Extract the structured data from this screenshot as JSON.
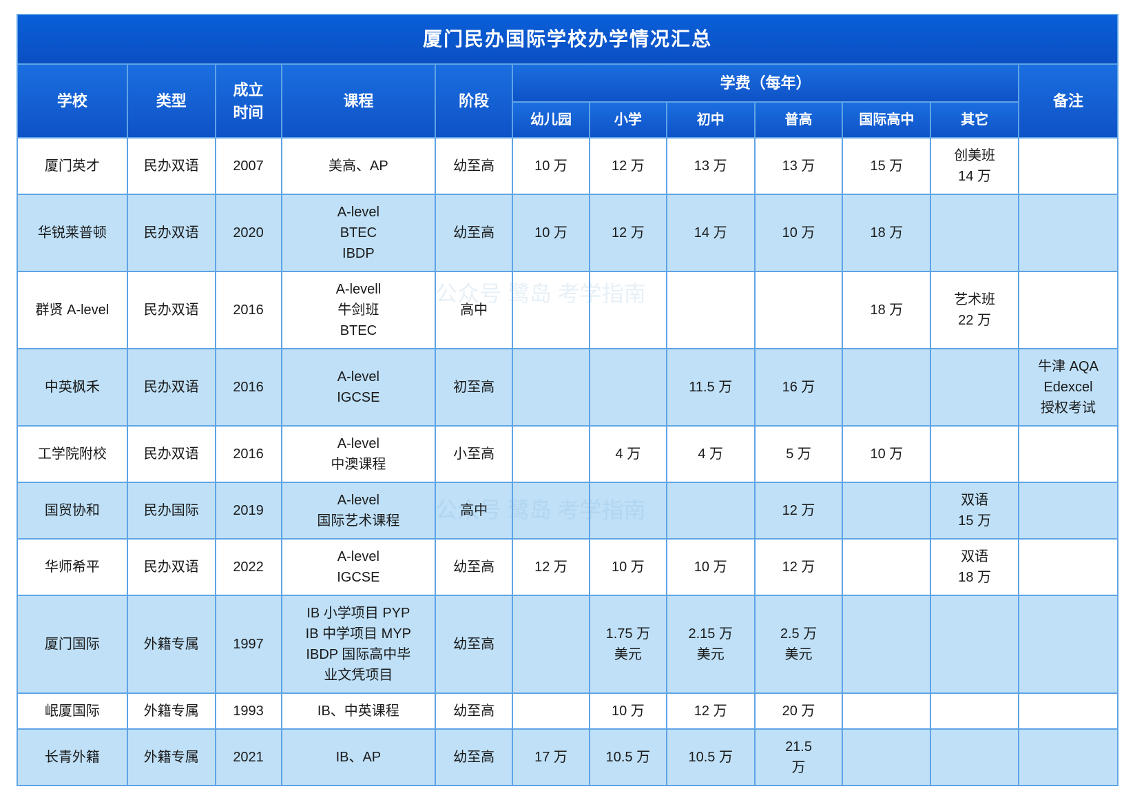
{
  "title": "厦门民办国际学校办学情况汇总",
  "columns": {
    "school": "学校",
    "type": "类型",
    "founded": "成立\n时间",
    "curriculum": "课程",
    "stage": "阶段",
    "tuition_group": "学费（每年）",
    "tuition": {
      "kinder": "幼儿园",
      "primary": "小学",
      "junior": "初中",
      "senior": "普高",
      "intl_senior": "国际高中",
      "other": "其它"
    },
    "remark": "备注"
  },
  "col_widths_pct": [
    10,
    8,
    6,
    14,
    7,
    7,
    7,
    8,
    8,
    8,
    8,
    9
  ],
  "rows": [
    {
      "school": "厦门英才",
      "type": "民办双语",
      "founded": "2007",
      "curriculum": "美高、AP",
      "stage": "幼至高",
      "kinder": "10 万",
      "primary": "12 万",
      "junior": "13 万",
      "senior": "13 万",
      "intl_senior": "15 万",
      "other": "创美班\n14 万",
      "remark": ""
    },
    {
      "school": "华锐莱普顿",
      "type": "民办双语",
      "founded": "2020",
      "curriculum": "A-level\nBTEC\nIBDP",
      "stage": "幼至高",
      "kinder": "10 万",
      "primary": "12 万",
      "junior": "14 万",
      "senior": "10 万",
      "intl_senior": "18 万",
      "other": "",
      "remark": ""
    },
    {
      "school": "群贤 A-level",
      "type": "民办双语",
      "founded": "2016",
      "curriculum": "A-levell\n牛剑班\nBTEC",
      "stage": "高中",
      "kinder": "",
      "primary": "",
      "junior": "",
      "senior": "",
      "intl_senior": "18 万",
      "other": "艺术班\n22 万",
      "remark": ""
    },
    {
      "school": "中英枫禾",
      "type": "民办双语",
      "founded": "2016",
      "curriculum": "A-level\nIGCSE",
      "stage": "初至高",
      "kinder": "",
      "primary": "",
      "junior": "11.5 万",
      "senior": "16 万",
      "intl_senior": "",
      "other": "",
      "remark": "牛津 AQA\nEdexcel\n授权考试"
    },
    {
      "school": "工学院附校",
      "type": "民办双语",
      "founded": "2016",
      "curriculum": "A-level\n中澳课程",
      "stage": "小至高",
      "kinder": "",
      "primary": "4 万",
      "junior": "4 万",
      "senior": "5 万",
      "intl_senior": "10 万",
      "other": "",
      "remark": ""
    },
    {
      "school": "国贸协和",
      "type": "民办国际",
      "founded": "2019",
      "curriculum": "A-level\n国际艺术课程",
      "stage": "高中",
      "kinder": "",
      "primary": "",
      "junior": "",
      "senior": "12 万",
      "intl_senior": "",
      "other": "双语\n15 万",
      "remark": ""
    },
    {
      "school": "华师希平",
      "type": "民办双语",
      "founded": "2022",
      "curriculum": "A-level\nIGCSE",
      "stage": "幼至高",
      "kinder": "12 万",
      "primary": "10 万",
      "junior": "10 万",
      "senior": "12 万",
      "intl_senior": "",
      "other": "双语\n18 万",
      "remark": ""
    },
    {
      "school": "厦门国际",
      "type": "外籍专属",
      "founded": "1997",
      "curriculum": "IB 小学项目 PYP\nIB 中学项目 MYP\nIBDP 国际高中毕\n业文凭项目",
      "stage": "幼至高",
      "kinder": "",
      "primary": "1.75 万\n美元",
      "junior": "2.15 万\n美元",
      "senior": "2.5 万\n美元",
      "intl_senior": "",
      "other": "",
      "remark": ""
    },
    {
      "school": "岷厦国际",
      "type": "外籍专属",
      "founded": "1993",
      "curriculum": "IB、中英课程",
      "stage": "幼至高",
      "kinder": "",
      "primary": "10 万",
      "junior": "12 万",
      "senior": "20 万",
      "intl_senior": "",
      "other": "",
      "remark": ""
    },
    {
      "school": "长青外籍",
      "type": "外籍专属",
      "founded": "2021",
      "curriculum": "IB、AP",
      "stage": "幼至高",
      "kinder": "17 万",
      "primary": "10.5 万",
      "junior": "10.5 万",
      "senior": "21.5\n万",
      "intl_senior": "",
      "other": "",
      "remark": ""
    }
  ],
  "row_band_colors": {
    "odd": "#ffffff",
    "even": "#bfe0f7"
  },
  "header_gradient": {
    "from": "#1b6fe0",
    "to": "#0e52c7"
  },
  "title_gradient": {
    "from": "#0a5fd9",
    "to": "#0b4fc2"
  },
  "border_color": "#5fa4e6",
  "watermark_text": "公众号 鹭岛 考学指南"
}
